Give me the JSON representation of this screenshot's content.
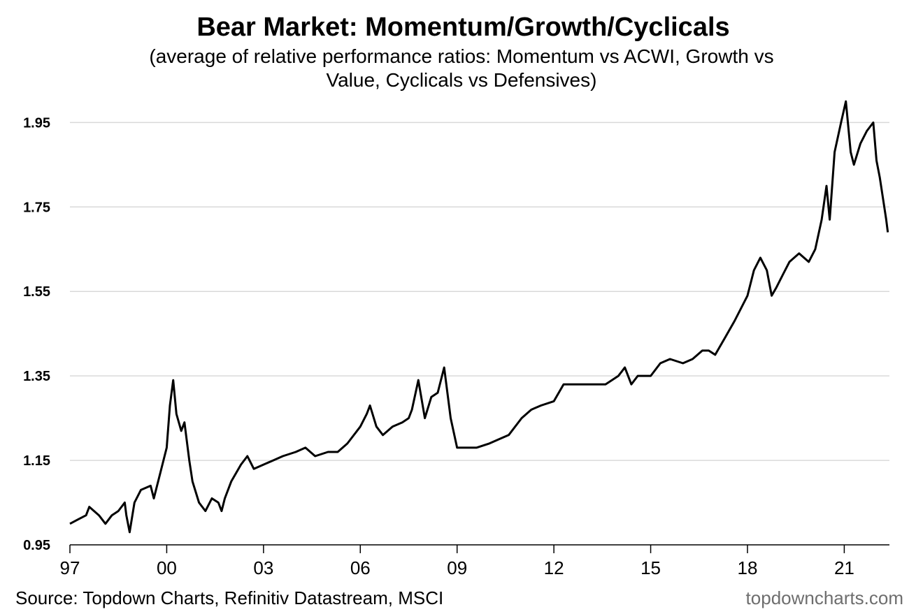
{
  "chart_data": {
    "type": "line",
    "title": "Bear Market: Momentum/Growth/Cyclicals",
    "subtitle_lines": [
      "(average of relative performance ratios: Momentum vs ACWI, Growth vs",
      "Value, Cyclicals vs Defensives)"
    ],
    "xlabel": "",
    "ylabel": "",
    "xlim": [
      1997.0,
      2022.4
    ],
    "ylim": [
      0.95,
      2.03
    ],
    "x_ticks": [
      1997,
      2000,
      2003,
      2006,
      2009,
      2012,
      2015,
      2018,
      2021
    ],
    "x_tick_labels": [
      "97",
      "00",
      "03",
      "06",
      "09",
      "12",
      "15",
      "18",
      "21"
    ],
    "y_ticks": [
      0.95,
      1.15,
      1.35,
      1.55,
      1.75,
      1.95
    ],
    "y_tick_labels": [
      "0.95",
      "1.15",
      "1.35",
      "1.55",
      "1.75",
      "1.95"
    ],
    "grid": "horizontal",
    "series": [
      {
        "name": "Average relative performance ratio",
        "color": "#000000",
        "x": [
          1997.0,
          1997.25,
          1997.5,
          1997.6,
          1997.9,
          1998.1,
          1998.3,
          1998.5,
          1998.7,
          1998.75,
          1998.85,
          1999.0,
          1999.2,
          1999.5,
          1999.6,
          1999.8,
          2000.0,
          2000.1,
          2000.2,
          2000.3,
          2000.45,
          2000.55,
          2000.7,
          2000.8,
          2001.0,
          2001.2,
          2001.4,
          2001.6,
          2001.7,
          2001.8,
          2002.0,
          2002.3,
          2002.5,
          2002.7,
          2003.0,
          2003.3,
          2003.6,
          2004.0,
          2004.3,
          2004.6,
          2005.0,
          2005.3,
          2005.6,
          2006.0,
          2006.2,
          2006.3,
          2006.5,
          2006.7,
          2007.0,
          2007.3,
          2007.5,
          2007.6,
          2007.8,
          2008.0,
          2008.2,
          2008.4,
          2008.6,
          2008.8,
          2009.0,
          2009.3,
          2009.6,
          2010.0,
          2010.3,
          2010.6,
          2011.0,
          2011.3,
          2011.6,
          2012.0,
          2012.3,
          2012.6,
          2013.0,
          2013.3,
          2013.6,
          2014.0,
          2014.2,
          2014.4,
          2014.6,
          2015.0,
          2015.3,
          2015.6,
          2016.0,
          2016.3,
          2016.6,
          2016.8,
          2017.0,
          2017.3,
          2017.6,
          2018.0,
          2018.2,
          2018.4,
          2018.6,
          2018.75,
          2018.9,
          2019.1,
          2019.3,
          2019.6,
          2019.9,
          2020.1,
          2020.3,
          2020.45,
          2020.55,
          2020.7,
          2020.9,
          2021.05,
          2021.2,
          2021.3,
          2021.5,
          2021.7,
          2021.9,
          2022.0,
          2022.1,
          2022.2,
          2022.3,
          2022.35
        ],
        "values": [
          1.0,
          1.01,
          1.02,
          1.04,
          1.02,
          1.0,
          1.02,
          1.03,
          1.05,
          1.02,
          0.98,
          1.05,
          1.08,
          1.09,
          1.06,
          1.12,
          1.18,
          1.28,
          1.34,
          1.26,
          1.22,
          1.24,
          1.15,
          1.1,
          1.05,
          1.03,
          1.06,
          1.05,
          1.03,
          1.06,
          1.1,
          1.14,
          1.16,
          1.13,
          1.14,
          1.15,
          1.16,
          1.17,
          1.18,
          1.16,
          1.17,
          1.17,
          1.19,
          1.23,
          1.26,
          1.28,
          1.23,
          1.21,
          1.23,
          1.24,
          1.25,
          1.27,
          1.34,
          1.25,
          1.3,
          1.31,
          1.37,
          1.25,
          1.18,
          1.18,
          1.18,
          1.19,
          1.2,
          1.21,
          1.25,
          1.27,
          1.28,
          1.29,
          1.33,
          1.33,
          1.33,
          1.33,
          1.33,
          1.35,
          1.37,
          1.33,
          1.35,
          1.35,
          1.38,
          1.39,
          1.38,
          1.39,
          1.41,
          1.41,
          1.4,
          1.44,
          1.48,
          1.54,
          1.6,
          1.63,
          1.6,
          1.54,
          1.56,
          1.59,
          1.62,
          1.64,
          1.62,
          1.65,
          1.72,
          1.8,
          1.72,
          1.88,
          1.95,
          2.0,
          1.88,
          1.85,
          1.9,
          1.93,
          1.95,
          1.86,
          1.82,
          1.77,
          1.72,
          1.69
        ]
      }
    ],
    "annotations": {
      "source": "Source: Topdown Charts, Refinitiv Datastream, MSCI",
      "watermark": "topdowncharts.com"
    }
  }
}
